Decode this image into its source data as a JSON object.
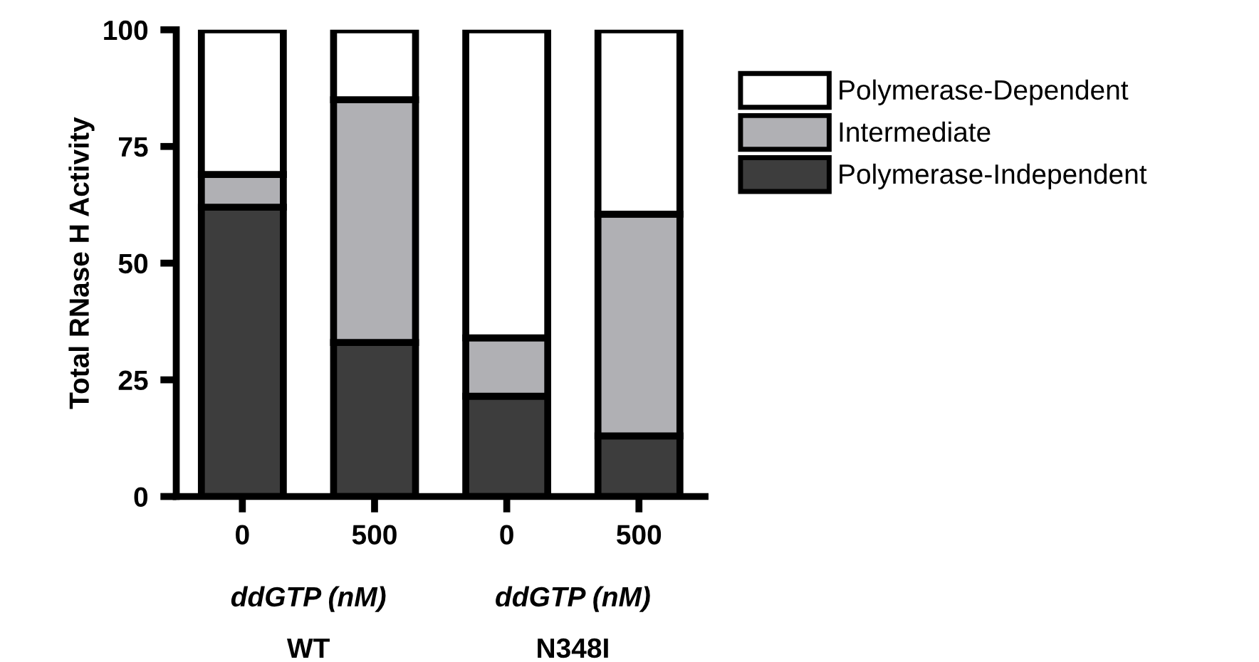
{
  "chart_data": {
    "type": "bar",
    "stacked": true,
    "ylabel": "Total RNase H Activity",
    "categories": [
      "0",
      "500",
      "0",
      "500"
    ],
    "series": [
      {
        "name": "Polymerase-Independent",
        "color": "#3d3d3d",
        "values": [
          62,
          33,
          21.5,
          13
        ]
      },
      {
        "name": "Intermediate",
        "color": "#b0b0b4",
        "values": [
          7,
          52,
          12.5,
          47.5
        ]
      },
      {
        "name": "Polymerase-Dependent",
        "color": "#ffffff",
        "values": [
          31,
          15,
          66,
          39.5
        ]
      }
    ],
    "ylim": [
      0,
      100
    ],
    "yticks": [
      0,
      25,
      50,
      75,
      100
    ],
    "grid": false,
    "legend": "right",
    "annotations": [
      "ddGTP (nM)",
      "ddGTP (nM)",
      "WT",
      "N348I"
    ]
  }
}
